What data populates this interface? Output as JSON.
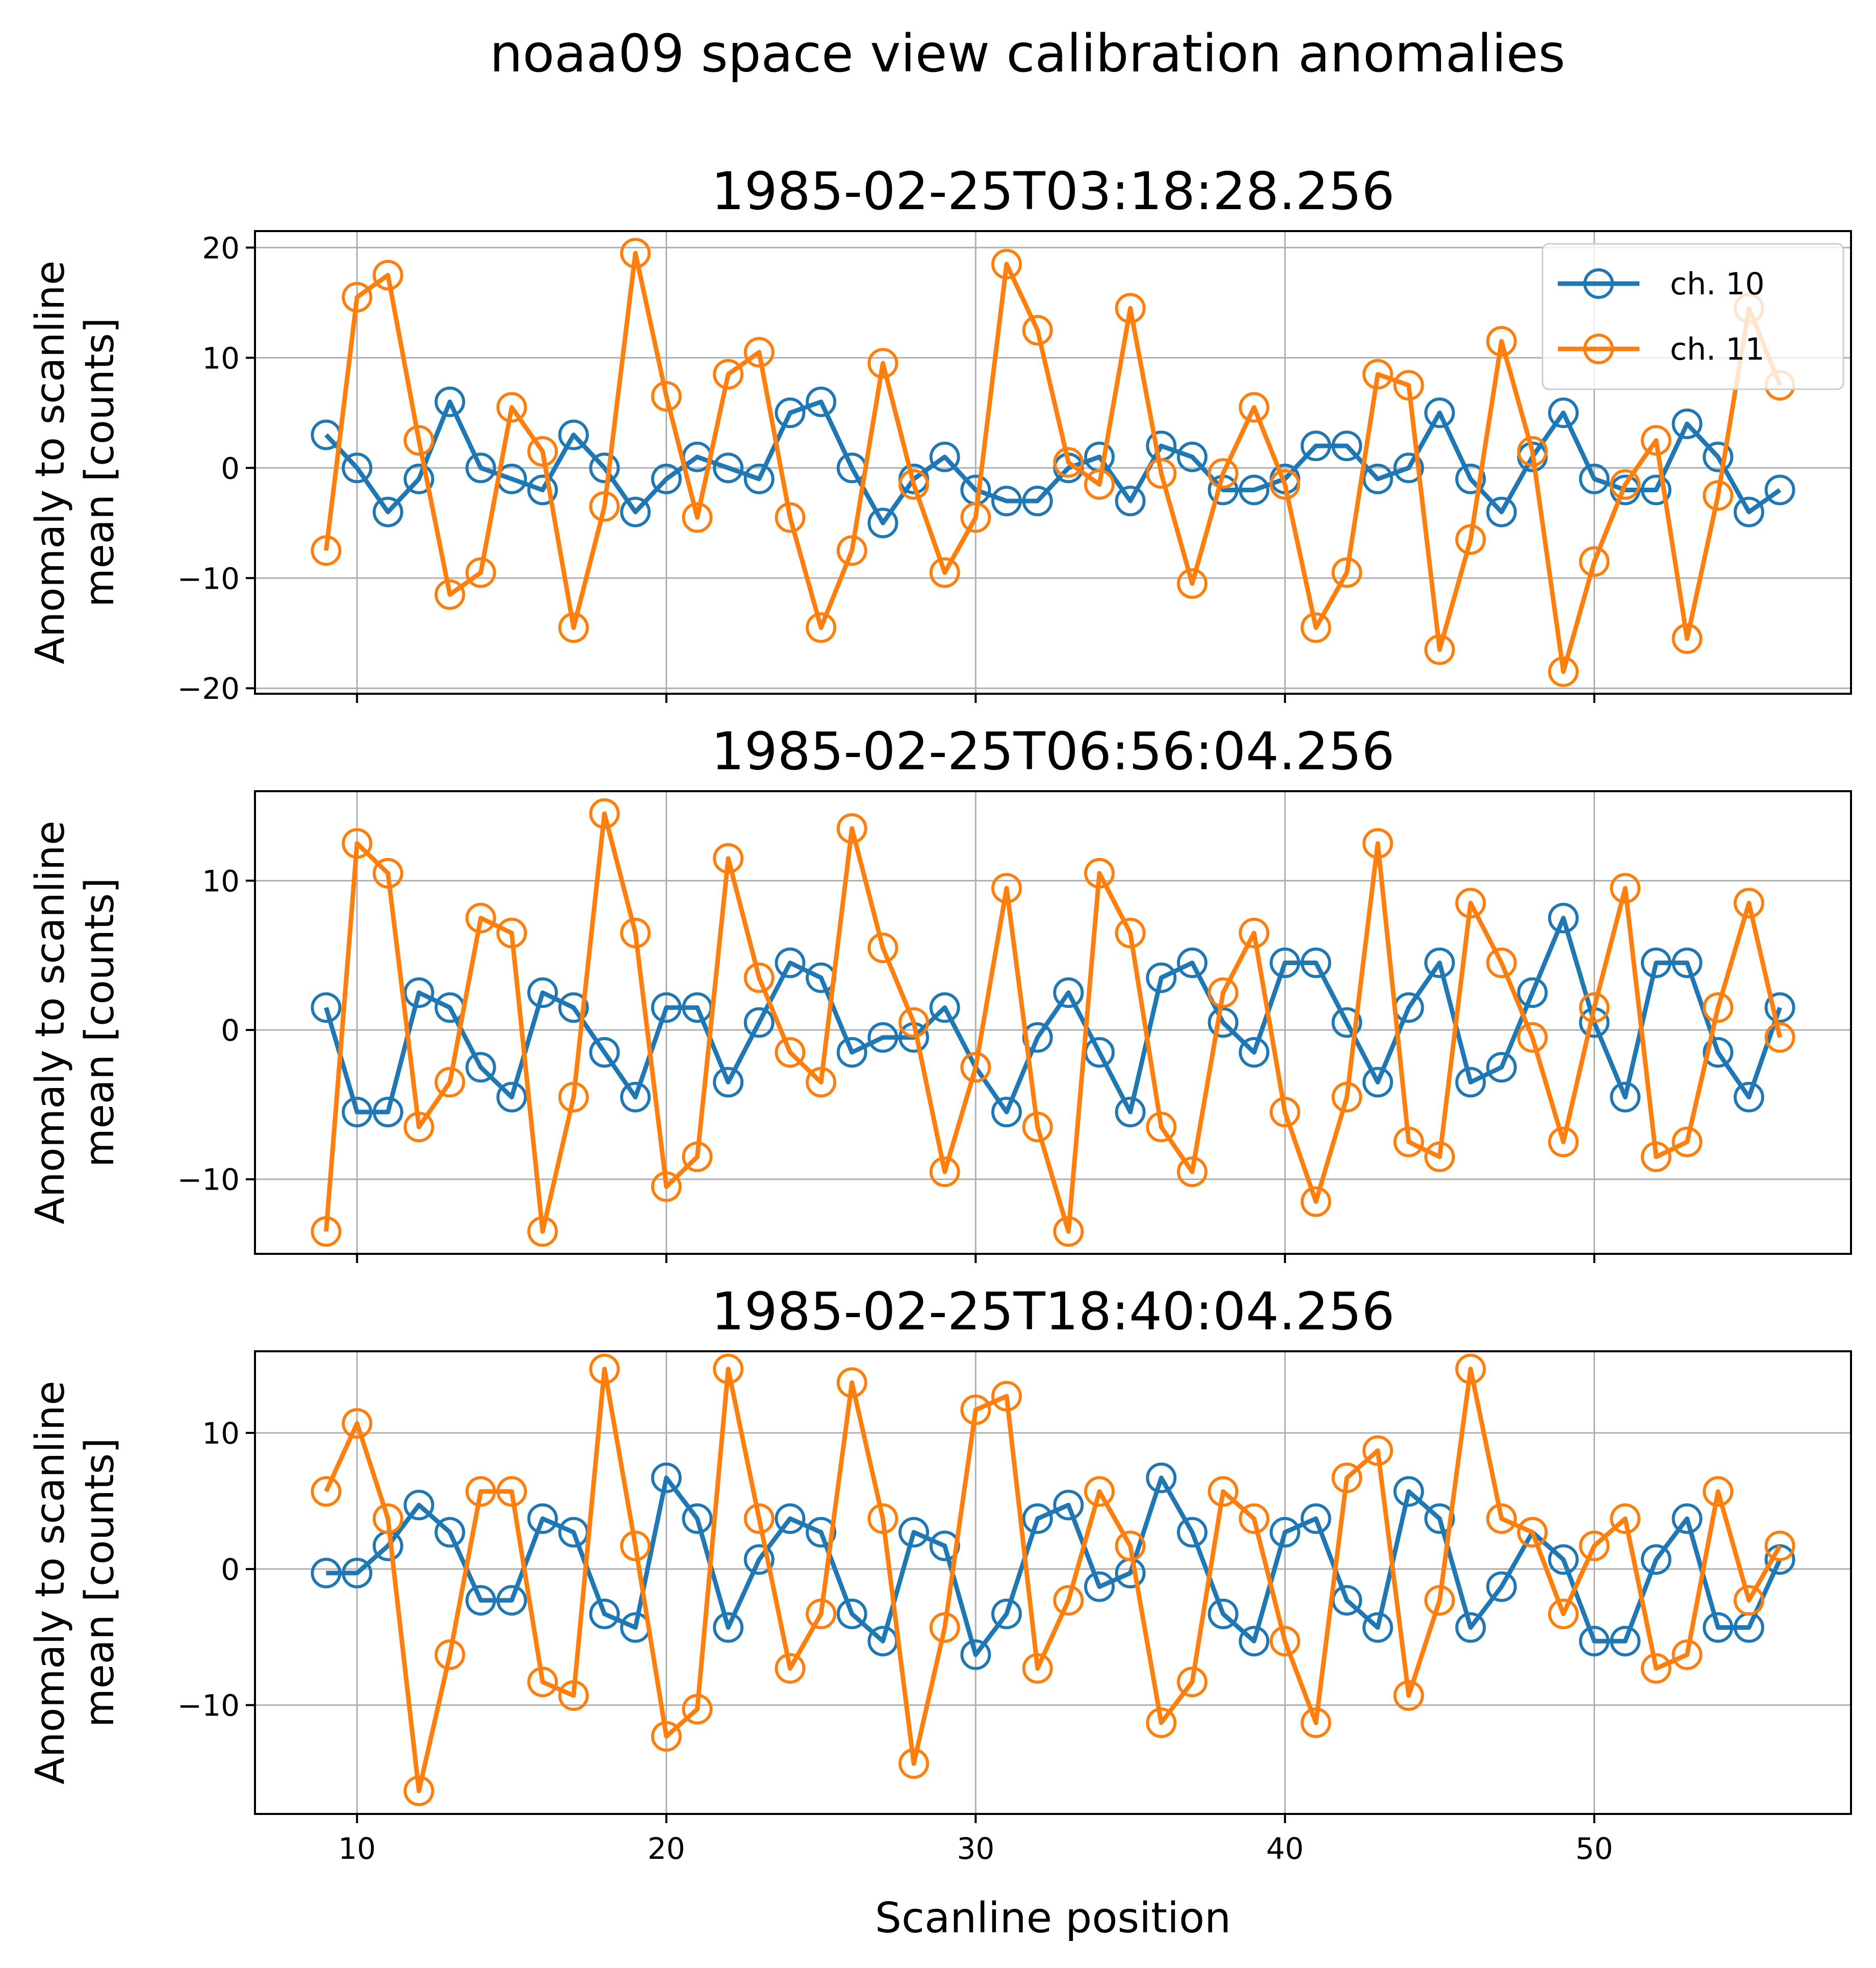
{
  "figure": {
    "suptitle": "noaa09 space view calibration anomalies",
    "xlabel": "Scanline position"
  },
  "colors": {
    "ch10": "#1f77b4",
    "ch11": "#ff7f0e",
    "grid": "#b0b0b0",
    "axes": "#000000"
  },
  "chart_data": [
    {
      "type": "line",
      "title": "1985-02-25T03:18:28.256",
      "ylabel": "Anomaly to scanline mean [counts]",
      "xlabel": "",
      "xlim": [
        6.7,
        58.3
      ],
      "ylim": [
        -20.5,
        21.5
      ],
      "xticks": [
        10,
        20,
        30,
        40,
        50
      ],
      "yticks": [
        -20,
        -10,
        0,
        10,
        20
      ],
      "show_xticklabels": false,
      "grid": true,
      "legend": "upper right",
      "x": [
        9,
        10,
        11,
        12,
        13,
        14,
        15,
        16,
        17,
        18,
        19,
        20,
        21,
        22,
        23,
        24,
        25,
        26,
        27,
        28,
        29,
        30,
        31,
        32,
        33,
        34,
        35,
        36,
        37,
        38,
        39,
        40,
        41,
        42,
        43,
        44,
        45,
        46,
        47,
        48,
        49,
        50,
        51,
        52,
        53,
        54,
        55,
        56
      ],
      "series": [
        {
          "name": "ch. 10",
          "color": "#1f77b4",
          "values": [
            3,
            0,
            -4,
            -1,
            6,
            0,
            -1,
            -2,
            3,
            0,
            -4,
            -1,
            1,
            0,
            -1,
            5,
            6,
            0,
            -5,
            -1,
            1,
            -2,
            -3,
            -3,
            0,
            1,
            -3,
            2,
            1,
            -2,
            -2,
            -1,
            2,
            2,
            -1,
            0,
            5,
            -1,
            -4,
            1,
            5,
            -1,
            -2,
            -2,
            4,
            1,
            -4,
            -2
          ]
        },
        {
          "name": "ch. 11",
          "color": "#ff7f0e",
          "values": [
            -7.5,
            15.5,
            17.5,
            2.5,
            -11.5,
            -9.5,
            5.5,
            1.5,
            -14.5,
            -3.5,
            19.5,
            6.5,
            -4.5,
            8.5,
            10.5,
            -4.5,
            -14.5,
            -7.5,
            9.5,
            -1.5,
            -9.5,
            -4.5,
            18.5,
            12.5,
            0.5,
            -1.5,
            14.5,
            -0.5,
            -10.5,
            -0.5,
            5.5,
            -1.5,
            -14.5,
            -9.5,
            8.5,
            7.5,
            -16.5,
            -6.5,
            11.5,
            1.5,
            -18.5,
            -8.5,
            -1.5,
            2.5,
            -15.5,
            -2.5,
            14.5,
            7.5
          ]
        }
      ]
    },
    {
      "type": "line",
      "title": "1985-02-25T06:56:04.256",
      "ylabel": "Anomaly to scanline mean [counts]",
      "xlabel": "",
      "xlim": [
        6.7,
        58.3
      ],
      "ylim": [
        -15,
        16
      ],
      "xticks": [
        10,
        20,
        30,
        40,
        50
      ],
      "yticks": [
        -10,
        0,
        10
      ],
      "show_xticklabels": false,
      "grid": true,
      "x": [
        9,
        10,
        11,
        12,
        13,
        14,
        15,
        16,
        17,
        18,
        19,
        20,
        21,
        22,
        23,
        24,
        25,
        26,
        27,
        28,
        29,
        30,
        31,
        32,
        33,
        34,
        35,
        36,
        37,
        38,
        39,
        40,
        41,
        42,
        43,
        44,
        45,
        46,
        47,
        48,
        49,
        50,
        51,
        52,
        53,
        54,
        55,
        56
      ],
      "series": [
        {
          "name": "ch. 10",
          "color": "#1f77b4",
          "values": [
            1.5,
            -5.5,
            -5.5,
            2.5,
            1.5,
            -2.5,
            -4.5,
            2.5,
            1.5,
            -1.5,
            -4.5,
            1.5,
            1.5,
            -3.5,
            0.5,
            4.5,
            3.5,
            -1.5,
            -0.5,
            -0.5,
            1.5,
            -2.5,
            -5.5,
            -0.5,
            2.5,
            -1.5,
            -5.5,
            3.5,
            4.5,
            0.5,
            -1.5,
            4.5,
            4.5,
            0.5,
            -3.5,
            1.5,
            4.5,
            -3.5,
            -2.5,
            2.5,
            7.5,
            0.5,
            -4.5,
            4.5,
            4.5,
            -1.5,
            -4.5,
            1.5
          ]
        },
        {
          "name": "ch. 11",
          "color": "#ff7f0e",
          "values": [
            -13.5,
            12.5,
            10.5,
            -6.5,
            -3.5,
            7.5,
            6.5,
            -13.5,
            -4.5,
            14.5,
            6.5,
            -10.5,
            -8.5,
            11.5,
            3.5,
            -1.5,
            -3.5,
            13.5,
            5.5,
            0.5,
            -9.5,
            -2.5,
            9.5,
            -6.5,
            -13.5,
            10.5,
            6.5,
            -6.5,
            -9.5,
            2.5,
            6.5,
            -5.5,
            -11.5,
            -4.5,
            12.5,
            -7.5,
            -8.5,
            8.5,
            4.5,
            -0.5,
            -7.5,
            1.5,
            9.5,
            -8.5,
            -7.5,
            1.5,
            8.5,
            -0.5
          ]
        }
      ]
    },
    {
      "type": "line",
      "title": "1985-02-25T18:40:04.256",
      "ylabel": "Anomaly to scanline mean [counts]",
      "xlabel": "Scanline position",
      "xlim": [
        6.7,
        58.3
      ],
      "ylim": [
        -18,
        16
      ],
      "xticks": [
        10,
        20,
        30,
        40,
        50
      ],
      "yticks": [
        -10,
        0,
        10
      ],
      "show_xticklabels": true,
      "grid": true,
      "x": [
        9,
        10,
        11,
        12,
        13,
        14,
        15,
        16,
        17,
        18,
        19,
        20,
        21,
        22,
        23,
        24,
        25,
        26,
        27,
        28,
        29,
        30,
        31,
        32,
        33,
        34,
        35,
        36,
        37,
        38,
        39,
        40,
        41,
        42,
        43,
        44,
        45,
        46,
        47,
        48,
        49,
        50,
        51,
        52,
        53,
        54,
        55,
        56
      ],
      "series": [
        {
          "name": "ch. 10",
          "color": "#1f77b4",
          "values": [
            -0.3,
            -0.3,
            1.7,
            4.7,
            2.7,
            -2.3,
            -2.3,
            3.7,
            2.7,
            -3.3,
            -4.3,
            6.7,
            3.7,
            -4.3,
            0.7,
            3.7,
            2.7,
            -3.3,
            -5.3,
            2.7,
            1.7,
            -6.3,
            -3.3,
            3.7,
            4.7,
            -1.3,
            -0.3,
            6.7,
            2.7,
            -3.3,
            -5.3,
            2.7,
            3.7,
            -2.3,
            -4.3,
            5.7,
            3.7,
            -4.3,
            -1.3,
            2.7,
            0.7,
            -5.3,
            -5.3,
            0.7,
            3.7,
            -4.3,
            -4.3,
            0.7
          ]
        },
        {
          "name": "ch. 11",
          "color": "#ff7f0e",
          "values": [
            5.7,
            10.7,
            3.7,
            -16.3,
            -6.3,
            5.7,
            5.7,
            -8.3,
            -9.3,
            14.7,
            1.7,
            -12.3,
            -10.3,
            14.7,
            3.7,
            -7.3,
            -3.3,
            13.7,
            3.7,
            -14.3,
            -4.3,
            11.7,
            12.7,
            -7.3,
            -2.3,
            5.7,
            1.7,
            -11.3,
            -8.3,
            5.7,
            3.7,
            -5.3,
            -11.3,
            6.7,
            8.7,
            -9.3,
            -2.3,
            14.7,
            3.7,
            2.7,
            -3.3,
            1.7,
            3.7,
            -7.3,
            -6.3,
            5.7,
            -2.3,
            1.7
          ]
        }
      ]
    }
  ]
}
